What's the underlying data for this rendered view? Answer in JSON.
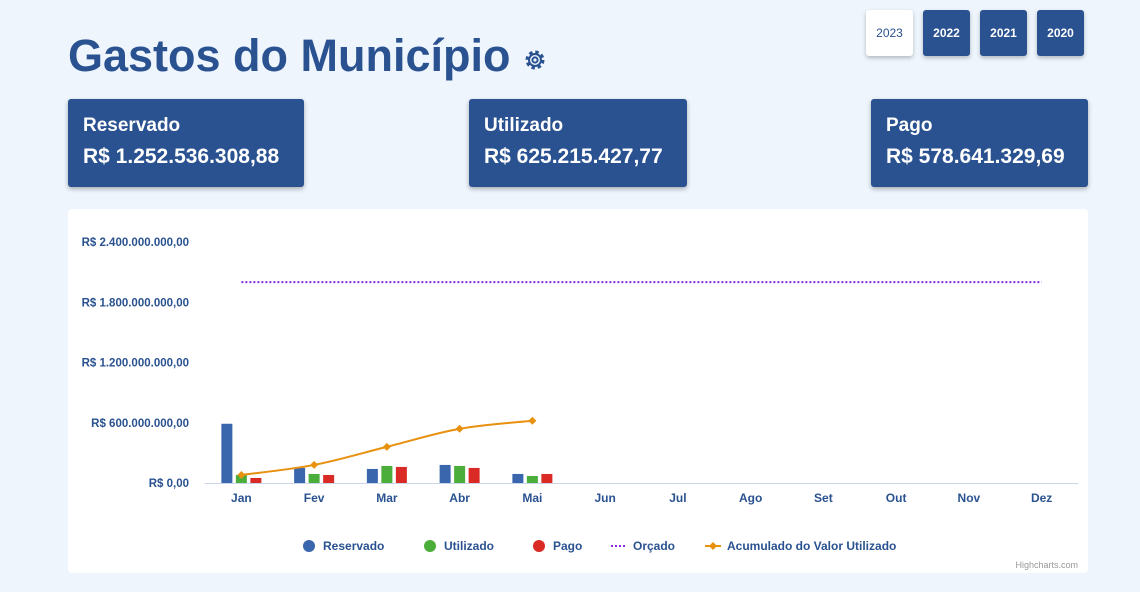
{
  "page": {
    "title": "Gastos do Município"
  },
  "icons": {
    "settings": "gear-icon"
  },
  "years": [
    {
      "label": "2023",
      "active": true
    },
    {
      "label": "2022",
      "active": false
    },
    {
      "label": "2021",
      "active": false
    },
    {
      "label": "2020",
      "active": false
    }
  ],
  "cards": [
    {
      "label": "Reservado",
      "value": "R$ 1.252.536.308,88"
    },
    {
      "label": "Utilizado",
      "value": "R$ 625.215.427,77"
    },
    {
      "label": "Pago",
      "value": "R$ 578.641.329,69"
    }
  ],
  "colors": {
    "primary": "#2a5290",
    "reservado": "#3a66ad",
    "utilizado": "#4cae3a",
    "pago": "#d92a26",
    "orcado": "#8a2be2",
    "acumulado": "#e8900f"
  },
  "credits": "Highcharts.com",
  "chart_data": {
    "type": "bar",
    "categories": [
      "Jan",
      "Fev",
      "Mar",
      "Abr",
      "Mai",
      "Jun",
      "Jul",
      "Ago",
      "Set",
      "Out",
      "Nov",
      "Dez"
    ],
    "ylim": [
      0,
      2400000000
    ],
    "yticks": [
      {
        "value": 0,
        "label": "R$ 0,00"
      },
      {
        "value": 600000000,
        "label": "R$ 600.000.000,00"
      },
      {
        "value": 1200000000,
        "label": "R$ 1.200.000.000,00"
      },
      {
        "value": 1800000000,
        "label": "R$ 1.800.000.000,00"
      },
      {
        "value": 2400000000,
        "label": "R$ 2.400.000.000,00"
      }
    ],
    "grid": false,
    "legend_position": "bottom",
    "series": [
      {
        "name": "Reservado",
        "type": "bar",
        "values": [
          590000000,
          150000000,
          140000000,
          180000000,
          90000000,
          null,
          null,
          null,
          null,
          null,
          null,
          null
        ]
      },
      {
        "name": "Utilizado",
        "type": "bar",
        "values": [
          80000000,
          90000000,
          170000000,
          170000000,
          70000000,
          null,
          null,
          null,
          null,
          null,
          null,
          null
        ]
      },
      {
        "name": "Pago",
        "type": "bar",
        "values": [
          50000000,
          80000000,
          160000000,
          150000000,
          90000000,
          null,
          null,
          null,
          null,
          null,
          null,
          null
        ]
      },
      {
        "name": "Orçado",
        "type": "dotted-line",
        "values": [
          2000000000,
          2000000000,
          2000000000,
          2000000000,
          2000000000,
          2000000000,
          2000000000,
          2000000000,
          2000000000,
          2000000000,
          2000000000,
          2000000000
        ]
      },
      {
        "name": "Acumulado do Valor Utilizado",
        "type": "line",
        "values": [
          80000000,
          180000000,
          360000000,
          540000000,
          620000000,
          null,
          null,
          null,
          null,
          null,
          null,
          null
        ]
      }
    ]
  }
}
